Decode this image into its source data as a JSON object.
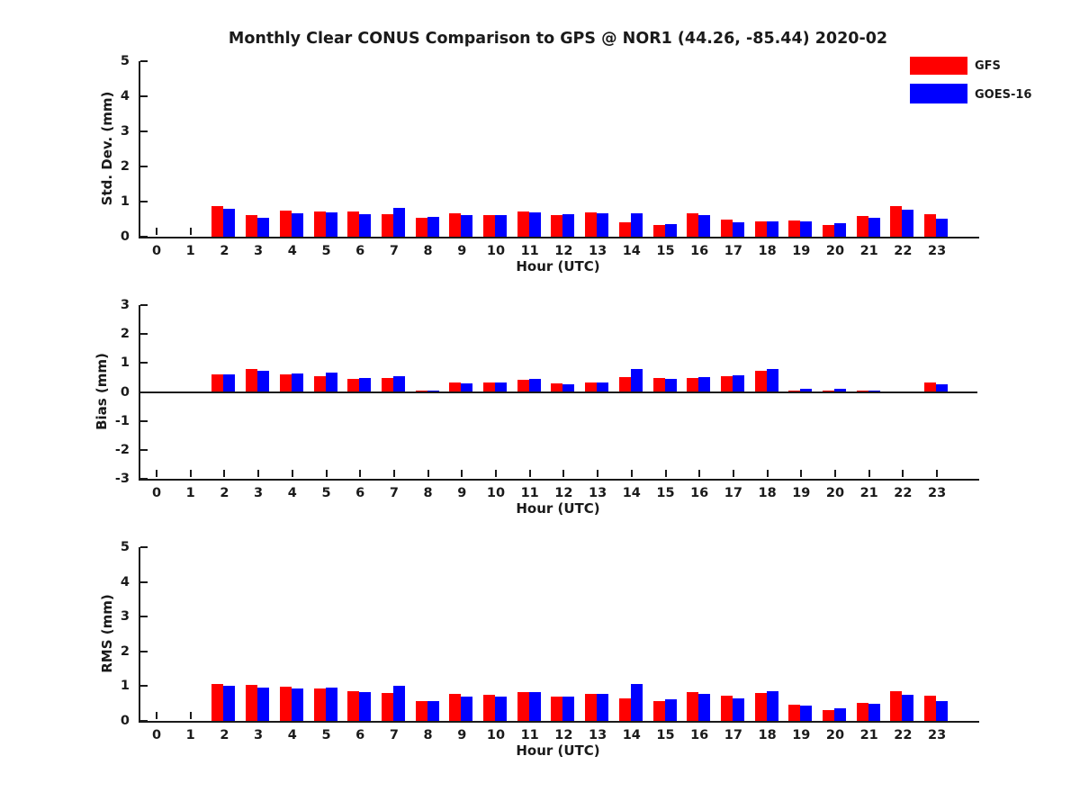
{
  "title": "Monthly Clear CONUS Comparison to GPS @ NOR1 (44.26, -85.44) 2020-02",
  "legend": [
    {
      "label": "GFS",
      "color": "#ff0000"
    },
    {
      "label": "GOES-16",
      "color": "#0000ff"
    }
  ],
  "chart_data": [
    {
      "type": "bar",
      "ylabel": "Std. Dev. (mm)",
      "xlabel": "Hour (UTC)",
      "ylim": [
        0,
        5
      ],
      "yticks": [
        0,
        1,
        2,
        3,
        4,
        5
      ],
      "categories": [
        0,
        1,
        2,
        3,
        4,
        5,
        6,
        7,
        8,
        9,
        10,
        11,
        12,
        13,
        14,
        15,
        16,
        17,
        18,
        19,
        20,
        21,
        22,
        23
      ],
      "series": [
        {
          "name": "GFS",
          "color": "#ff0000",
          "values": [
            0,
            0,
            0.88,
            0.62,
            0.74,
            0.71,
            0.71,
            0.64,
            0.55,
            0.66,
            0.62,
            0.72,
            0.61,
            0.69,
            0.42,
            0.33,
            0.67,
            0.5,
            0.43,
            0.47,
            0.34,
            0.58,
            0.88,
            0.65
          ]
        },
        {
          "name": "GOES-16",
          "color": "#0000ff",
          "values": [
            0,
            0,
            0.8,
            0.54,
            0.66,
            0.68,
            0.63,
            0.82,
            0.57,
            0.62,
            0.61,
            0.68,
            0.64,
            0.67,
            0.67,
            0.37,
            0.61,
            0.4,
            0.44,
            0.44,
            0.38,
            0.53,
            0.77,
            0.52
          ]
        }
      ]
    },
    {
      "type": "bar",
      "ylabel": "Bias (mm)",
      "xlabel": "Hour (UTC)",
      "ylim": [
        -3,
        3
      ],
      "yticks": [
        -3,
        -2,
        -1,
        0,
        1,
        2,
        3
      ],
      "categories": [
        0,
        1,
        2,
        3,
        4,
        5,
        6,
        7,
        8,
        9,
        10,
        11,
        12,
        13,
        14,
        15,
        16,
        17,
        18,
        19,
        20,
        21,
        22,
        23
      ],
      "series": [
        {
          "name": "GFS",
          "color": "#ff0000",
          "values": [
            0,
            0,
            0.6,
            0.79,
            0.6,
            0.55,
            0.44,
            0.48,
            0.06,
            0.33,
            0.32,
            0.41,
            0.3,
            0.33,
            0.5,
            0.49,
            0.48,
            0.55,
            0.72,
            0.05,
            0.04,
            0.04,
            0,
            0.32
          ]
        },
        {
          "name": "GOES-16",
          "color": "#0000ff",
          "values": [
            0,
            0,
            0.6,
            0.74,
            0.64,
            0.68,
            0.48,
            0.55,
            0.04,
            0.3,
            0.33,
            0.45,
            0.26,
            0.34,
            0.78,
            0.45,
            0.52,
            0.58,
            0.78,
            0.12,
            0.12,
            0.04,
            0,
            0.25
          ]
        }
      ]
    },
    {
      "type": "bar",
      "ylabel": "RMS (mm)",
      "xlabel": "Hour (UTC)",
      "ylim": [
        0,
        5
      ],
      "yticks": [
        0,
        1,
        2,
        3,
        4,
        5
      ],
      "categories": [
        0,
        1,
        2,
        3,
        4,
        5,
        6,
        7,
        8,
        9,
        10,
        11,
        12,
        13,
        14,
        15,
        16,
        17,
        18,
        19,
        20,
        21,
        22,
        23
      ],
      "series": [
        {
          "name": "GFS",
          "color": "#ff0000",
          "values": [
            0,
            0,
            1.07,
            1.03,
            0.98,
            0.93,
            0.85,
            0.8,
            0.58,
            0.77,
            0.74,
            0.84,
            0.71,
            0.78,
            0.66,
            0.57,
            0.83,
            0.72,
            0.81,
            0.46,
            0.3,
            0.53,
            0.85,
            0.73
          ]
        },
        {
          "name": "GOES-16",
          "color": "#0000ff",
          "values": [
            0,
            0,
            1.02,
            0.95,
            0.93,
            0.97,
            0.82,
            1.0,
            0.56,
            0.71,
            0.71,
            0.83,
            0.71,
            0.78,
            1.05,
            0.61,
            0.79,
            0.66,
            0.86,
            0.43,
            0.35,
            0.49,
            0.75,
            0.58
          ]
        }
      ]
    }
  ]
}
